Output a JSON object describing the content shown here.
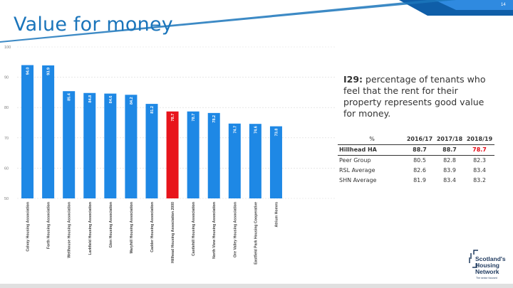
{
  "page_number": "14",
  "title": "Value for money",
  "question": {
    "code": "I29:",
    "text": "percentage of tenants who feel that the rent for their property represents good value for money."
  },
  "table": {
    "label_header": "%",
    "years": [
      "2016/17",
      "2017/18",
      "2018/19"
    ],
    "rows": [
      {
        "label": "Hillhead HA",
        "values": [
          "88.7",
          "88.7",
          "78.7"
        ]
      },
      {
        "label": "Peer Group",
        "values": [
          "80.5",
          "82.8",
          "82.3"
        ]
      },
      {
        "label": "RSL Average",
        "values": [
          "82.6",
          "83.9",
          "83.4"
        ]
      },
      {
        "label": "SHN Average",
        "values": [
          "81.9",
          "83.4",
          "83.2"
        ]
      }
    ]
  },
  "logo": {
    "line1": "Scotland's",
    "line2": "Housing",
    "line3": "Network",
    "tagline": "The sector focused"
  },
  "colors": {
    "bar": "#1e88e5",
    "highlight_bar": "#e8141b",
    "title": "#1b75bb",
    "banner": "#1b75bb"
  },
  "chart_data": {
    "type": "bar",
    "categories": [
      "Calvay Housing Association",
      "Forth Housing Association",
      "Wellhouse Housing Association",
      "Larkfield Housing Association",
      "Glen Housing Association",
      "Maryhill Housing Association",
      "Cadder Housing Association",
      "Hillhead Housing Association 2000",
      "Castlehill Housing Association",
      "North View Housing Association",
      "Ore Valley Housing Association",
      "Eastfield Park Housing Cooperative",
      "Atrium Homes"
    ],
    "values": [
      94.0,
      93.9,
      85.4,
      84.8,
      84.6,
      84.2,
      81.2,
      78.7,
      78.7,
      78.2,
      74.7,
      74.6,
      73.8
    ],
    "value_labels": [
      "94.0",
      "93.9",
      "85.4",
      "84.8",
      "84.6",
      "84.2",
      "81.2",
      "78.7",
      "78.7",
      "78.2",
      "74.7",
      "74.6",
      "73.8"
    ],
    "highlight_index": 7,
    "ylim": [
      50,
      100
    ],
    "yticks": [
      "50",
      "60",
      "70",
      "80",
      "90",
      "100"
    ],
    "grid": true,
    "xlabel": "",
    "ylabel": ""
  }
}
